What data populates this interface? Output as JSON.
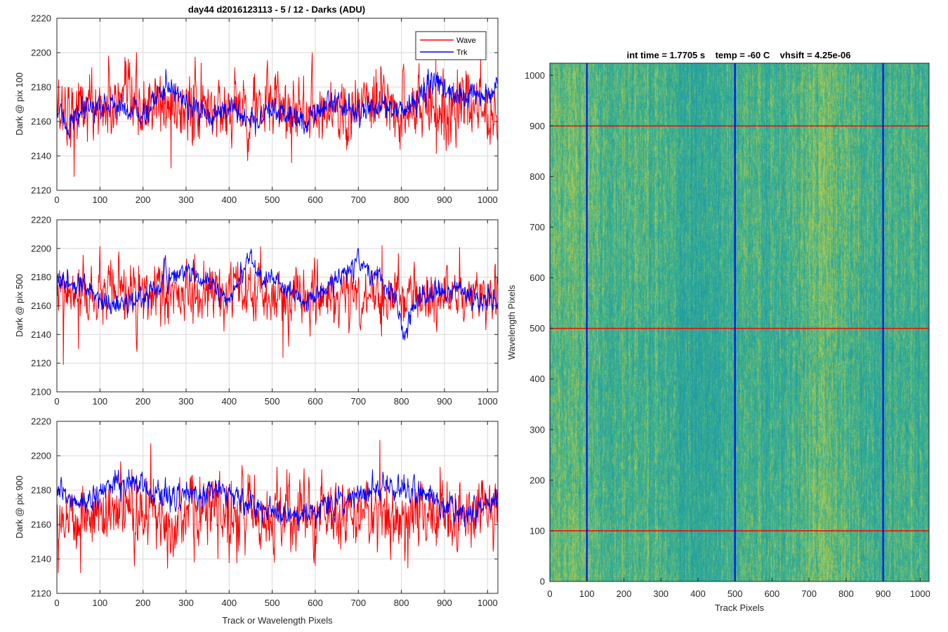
{
  "window": {
    "background": "#ffffff"
  },
  "colors": {
    "wave": "#ff0000",
    "trk": "#0000ff",
    "axis": "#262626",
    "grid": "#d9d9d9",
    "image_low": "#1f9aa6",
    "image_high": "#b7c94a"
  },
  "chart_data": [
    {
      "type": "line",
      "title": "day44 d2016123113 - 5 / 12 - Darks (ADU)",
      "xlabel": "",
      "ylabel": "Dark @ pix 100",
      "xlim": [
        0,
        1024
      ],
      "ylim": [
        2120,
        2220
      ],
      "xticks": [
        "0",
        "100",
        "200",
        "300",
        "400",
        "500",
        "600",
        "700",
        "800",
        "900",
        "1000"
      ],
      "yticks": [
        "2120",
        "2140",
        "2160",
        "2180",
        "2200",
        "2220"
      ],
      "grid": true,
      "legend_position": "top-right",
      "series": [
        {
          "name": "Wave",
          "color": "#ff0000",
          "mean": 2168,
          "noise_sd": 10,
          "range": [
            2128,
            2200
          ],
          "extremes": [
            [
              40,
              2128
            ],
            [
              120,
              2198
            ],
            [
              265,
              2133
            ],
            [
              545,
              2136
            ],
            [
              880,
              2196
            ]
          ]
        },
        {
          "name": "Trk",
          "color": "#0000ff",
          "mean": 2168,
          "noise_sd": 6,
          "range": [
            2145,
            2195
          ],
          "trend": [
            [
              0,
              2166
            ],
            [
              25,
              2158
            ],
            [
              80,
              2168
            ],
            [
              150,
              2170
            ],
            [
              200,
              2163
            ],
            [
              260,
              2183
            ],
            [
              310,
              2170
            ],
            [
              350,
              2160
            ],
            [
              410,
              2170
            ],
            [
              440,
              2160
            ],
            [
              520,
              2165
            ],
            [
              560,
              2160
            ],
            [
              640,
              2172
            ],
            [
              700,
              2165
            ],
            [
              760,
              2170
            ],
            [
              800,
              2165
            ],
            [
              880,
              2185
            ],
            [
              930,
              2172
            ],
            [
              980,
              2175
            ],
            [
              1024,
              2180
            ]
          ]
        }
      ]
    },
    {
      "type": "line",
      "title": "",
      "xlabel": "",
      "ylabel": "Dark @ pix 500",
      "xlim": [
        0,
        1024
      ],
      "ylim": [
        2100,
        2220
      ],
      "xticks": [
        "0",
        "100",
        "200",
        "300",
        "400",
        "500",
        "600",
        "700",
        "800",
        "900",
        "1000"
      ],
      "yticks": [
        "2100",
        "2120",
        "2140",
        "2160",
        "2180",
        "2200",
        "2220"
      ],
      "grid": true,
      "series": [
        {
          "name": "Wave",
          "color": "#ff0000",
          "mean": 2167,
          "noise_sd": 10,
          "range": [
            2119,
            2202
          ],
          "extremes": [
            [
              15,
              2119
            ],
            [
              525,
              2124
            ],
            [
              755,
              2202
            ],
            [
              50,
              2130
            ]
          ]
        },
        {
          "name": "Trk",
          "color": "#0000ff",
          "mean": 2168,
          "noise_sd": 6,
          "range": [
            2134,
            2200
          ],
          "trend": [
            [
              0,
              2178
            ],
            [
              60,
              2172
            ],
            [
              130,
              2160
            ],
            [
              200,
              2165
            ],
            [
              260,
              2180
            ],
            [
              300,
              2185
            ],
            [
              350,
              2175
            ],
            [
              400,
              2165
            ],
            [
              450,
              2195
            ],
            [
              480,
              2180
            ],
            [
              540,
              2170
            ],
            [
              580,
              2163
            ],
            [
              640,
              2175
            ],
            [
              700,
              2192
            ],
            [
              740,
              2180
            ],
            [
              780,
              2168
            ],
            [
              805,
              2140
            ],
            [
              830,
              2160
            ],
            [
              870,
              2170
            ],
            [
              930,
              2172
            ],
            [
              980,
              2165
            ],
            [
              1024,
              2160
            ]
          ]
        }
      ]
    },
    {
      "type": "line",
      "title": "",
      "xlabel": "Track or Wavelength Pixels",
      "ylabel": "Dark @ pix 900",
      "xlim": [
        0,
        1024
      ],
      "ylim": [
        2120,
        2220
      ],
      "xticks": [
        "0",
        "100",
        "200",
        "300",
        "400",
        "500",
        "600",
        "700",
        "800",
        "900",
        "1000"
      ],
      "yticks": [
        "2120",
        "2140",
        "2160",
        "2180",
        "2200",
        "2220"
      ],
      "grid": true,
      "series": [
        {
          "name": "Wave",
          "color": "#ff0000",
          "mean": 2166,
          "noise_sd": 10,
          "range": [
            2132,
            2209
          ],
          "extremes": [
            [
              55,
              2132
            ],
            [
              218,
              2207
            ],
            [
              750,
              2209
            ],
            [
              600,
              2136
            ],
            [
              505,
              2138
            ]
          ]
        },
        {
          "name": "Trk",
          "color": "#0000ff",
          "mean": 2176,
          "noise_sd": 6,
          "range": [
            2150,
            2195
          ],
          "trend": [
            [
              0,
              2178
            ],
            [
              60,
              2172
            ],
            [
              140,
              2185
            ],
            [
              190,
              2183
            ],
            [
              250,
              2177
            ],
            [
              320,
              2176
            ],
            [
              380,
              2183
            ],
            [
              440,
              2170
            ],
            [
              500,
              2168
            ],
            [
              560,
              2165
            ],
            [
              620,
              2170
            ],
            [
              700,
              2178
            ],
            [
              760,
              2182
            ],
            [
              850,
              2180
            ],
            [
              900,
              2170
            ],
            [
              960,
              2165
            ],
            [
              1024,
              2175
            ]
          ]
        }
      ]
    },
    {
      "type": "heatmap",
      "title": "int time = 1.7705 s    temp = -60 C    vhsift = 4.25e-06",
      "xlabel": "Track Pixels",
      "ylabel": "Wavelength Pixels",
      "xlim": [
        0,
        1024
      ],
      "ylim": [
        0,
        1024
      ],
      "xticks": [
        "0",
        "100",
        "200",
        "300",
        "400",
        "500",
        "600",
        "700",
        "800",
        "900",
        "1000"
      ],
      "yticks": [
        "0",
        "100",
        "200",
        "300",
        "400",
        "500",
        "600",
        "700",
        "800",
        "900",
        "1000"
      ],
      "grid": false,
      "colormap": "parula",
      "value_range_adu": [
        2120,
        2220
      ],
      "markers": {
        "vertical_lines": [
          100,
          500,
          900
        ],
        "vertical_color": "#0000ff",
        "horizontal_lines": [
          100,
          500,
          900
        ],
        "horizontal_color": "#ff0000"
      }
    }
  ]
}
